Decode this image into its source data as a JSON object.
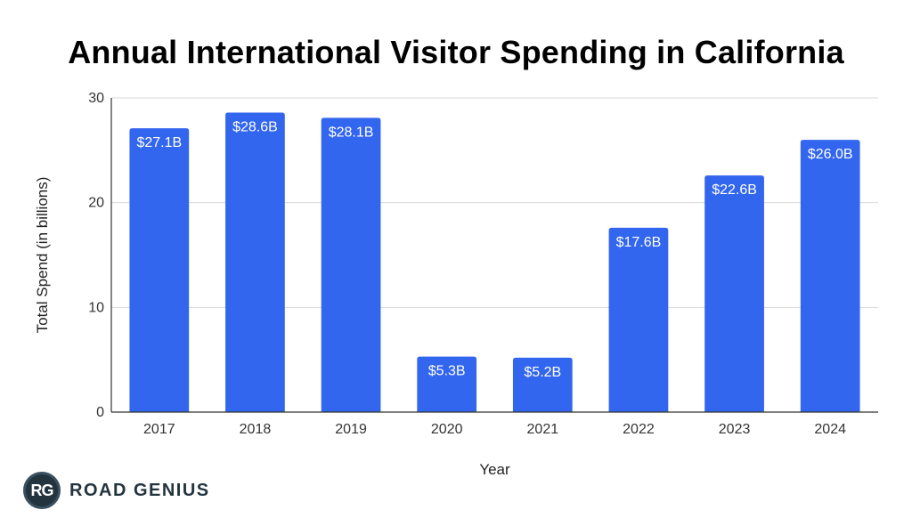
{
  "chart_data": {
    "type": "bar",
    "title": "Annual International Visitor Spending in California",
    "xlabel": "Year",
    "ylabel": "Total Spend (in billions)",
    "categories": [
      "2017",
      "2018",
      "2019",
      "2020",
      "2021",
      "2022",
      "2023",
      "2024"
    ],
    "values": [
      27.1,
      28.6,
      28.1,
      5.3,
      5.2,
      17.6,
      22.6,
      26.0
    ],
    "data_labels": [
      "$27.1B",
      "$28.6B",
      "$28.1B",
      "$5.3B",
      "$5.2B",
      "$17.6B",
      "$22.6B",
      "$26.0B"
    ],
    "ylim": [
      0,
      30
    ],
    "yticks": [
      0,
      10,
      20,
      30
    ],
    "grid": true,
    "legend": "none",
    "colors": {
      "bar": "#3366ee",
      "grid": "#d9d9d9",
      "axis": "#333333",
      "label": "#ffffff"
    }
  },
  "brand": {
    "logo_initials": "RG",
    "name": "ROAD GENIUS"
  }
}
